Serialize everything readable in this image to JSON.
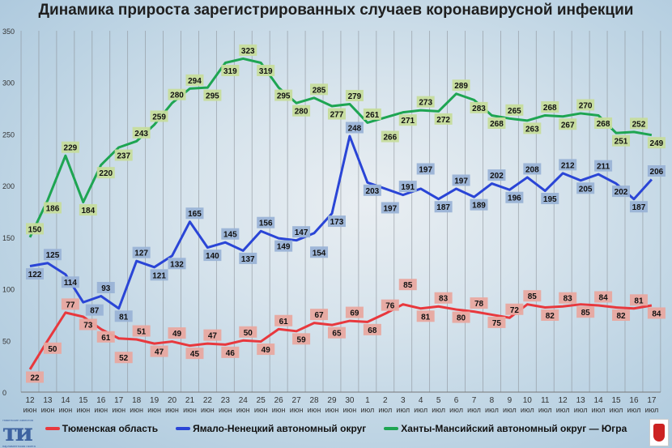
{
  "chart_data": {
    "type": "line",
    "title": "Динамика прироста зарегистрированных случаев коронавирусной инфекции",
    "xlabel": "",
    "ylabel": "",
    "ylim": [
      0,
      350
    ],
    "yticks": [
      0,
      50,
      100,
      150,
      200,
      250,
      300,
      350
    ],
    "grid": "vertical",
    "legend": "bottom",
    "x_days": [
      "12",
      "13",
      "14",
      "15",
      "16",
      "17",
      "18",
      "19",
      "20",
      "21",
      "22",
      "23",
      "24",
      "25",
      "26",
      "27",
      "28",
      "29",
      "30",
      "1",
      "2",
      "3",
      "4",
      "5",
      "6",
      "7",
      "8",
      "9",
      "10",
      "11",
      "12",
      "13",
      "14",
      "15",
      "16",
      "17"
    ],
    "x_months": [
      "июн",
      "июн",
      "июн",
      "июн",
      "июн",
      "июн",
      "июн",
      "июн",
      "июн",
      "июн",
      "июн",
      "июн",
      "июн",
      "июн",
      "июн",
      "июн",
      "июн",
      "июн",
      "июн",
      "июл",
      "июл",
      "июл",
      "июл",
      "июл",
      "июл",
      "июл",
      "июл",
      "июл",
      "июл",
      "июл",
      "июл",
      "июл",
      "июл",
      "июл",
      "июл",
      "июл"
    ],
    "series": [
      {
        "name": "Тюменская область",
        "color": "#e8383d",
        "label_bg": "#e8a8a0",
        "values": [
          22,
          50,
          77,
          73,
          61,
          52,
          51,
          47,
          49,
          45,
          47,
          46,
          50,
          49,
          61,
          59,
          67,
          65,
          69,
          68,
          76,
          85,
          81,
          83,
          80,
          78,
          75,
          72,
          85,
          82,
          83,
          85,
          84,
          82,
          81,
          84
        ]
      },
      {
        "name": "Ямало-Ненецкий автономный округ",
        "color": "#2a45d6",
        "label_bg": "#9ab3d6",
        "values": [
          122,
          125,
          114,
          87,
          93,
          81,
          127,
          121,
          132,
          165,
          140,
          145,
          137,
          156,
          149,
          147,
          154,
          173,
          248,
          203,
          197,
          191,
          197,
          187,
          197,
          189,
          202,
          196,
          208,
          195,
          212,
          205,
          211,
          202,
          187,
          206
        ]
      },
      {
        "name": "Ханты-Мансийский автономный округ — Югра",
        "color": "#1ea552",
        "label_bg": "#c6dc9c",
        "values": [
          150,
          186,
          229,
          184,
          220,
          237,
          243,
          259,
          280,
          294,
          295,
          319,
          323,
          319,
          295,
          280,
          285,
          277,
          279,
          261,
          266,
          271,
          273,
          272,
          289,
          283,
          268,
          265,
          263,
          268,
          267,
          270,
          268,
          251,
          252,
          249
        ]
      }
    ]
  },
  "logo": {
    "text": "ти",
    "caption_top": "тюменские известия",
    "caption_bottom": "парламентская газета"
  }
}
